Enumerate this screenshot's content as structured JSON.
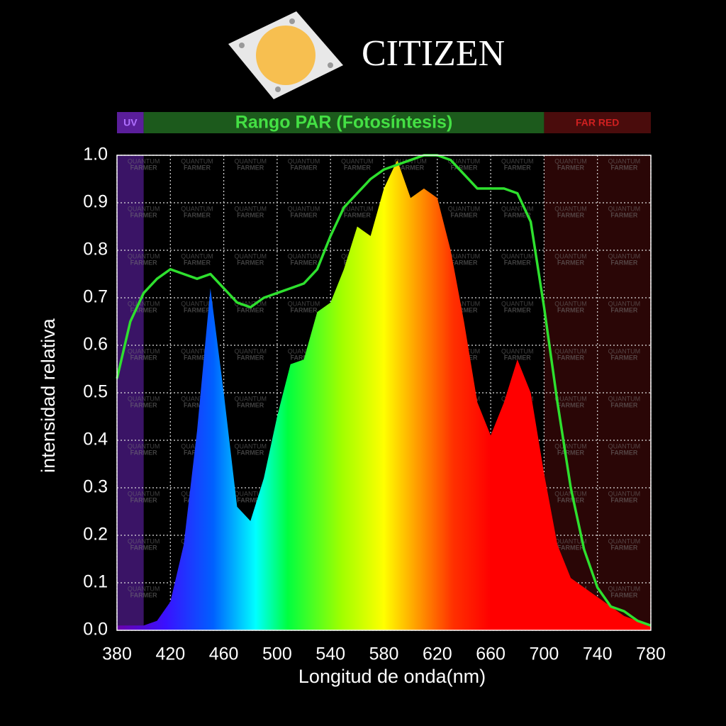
{
  "logo_text": "CITIZEN",
  "chart_data": {
    "type": "area-line",
    "xlabel": "Longitud de onda(nm)",
    "ylabel": "intensidad relativa",
    "regions": [
      {
        "label": "UV",
        "range": [
          380,
          400
        ],
        "color": "#3a1466",
        "header_color": "#5a1e9a",
        "text_color": "#b070ff"
      },
      {
        "label": "Rango PAR (Fotosíntesis)",
        "range": [
          400,
          700
        ],
        "color": null,
        "header_color": "#1c5a1c",
        "text_color": "#44e044"
      },
      {
        "label": "FAR RED",
        "range": [
          700,
          780
        ],
        "color": "#2a0606",
        "header_color": "#4a0c0c",
        "text_color": "#d02020"
      }
    ],
    "watermark": [
      "QUANTUM",
      "FARMER"
    ],
    "x": [
      380,
      390,
      400,
      410,
      420,
      430,
      440,
      450,
      460,
      470,
      480,
      490,
      500,
      510,
      520,
      530,
      540,
      550,
      560,
      570,
      580,
      590,
      600,
      610,
      620,
      630,
      640,
      650,
      660,
      670,
      680,
      690,
      700,
      710,
      720,
      730,
      740,
      750,
      760,
      770,
      780
    ],
    "series": [
      {
        "kind": "area",
        "color": "spectrum",
        "values": [
          0.01,
          0.01,
          0.01,
          0.02,
          0.06,
          0.18,
          0.42,
          0.72,
          0.5,
          0.26,
          0.23,
          0.32,
          0.45,
          0.56,
          0.57,
          0.67,
          0.69,
          0.76,
          0.85,
          0.83,
          0.93,
          0.99,
          0.91,
          0.93,
          0.91,
          0.8,
          0.65,
          0.48,
          0.41,
          0.48,
          0.57,
          0.5,
          0.33,
          0.18,
          0.11,
          0.09,
          0.07,
          0.05,
          0.03,
          0.02,
          0.01
        ]
      },
      {
        "kind": "line",
        "color": "#2ee02e",
        "values": [
          0.53,
          0.65,
          0.71,
          0.74,
          0.76,
          0.75,
          0.74,
          0.75,
          0.72,
          0.69,
          0.68,
          0.7,
          0.71,
          0.72,
          0.73,
          0.76,
          0.83,
          0.89,
          0.92,
          0.95,
          0.97,
          0.98,
          0.99,
          1.0,
          1.0,
          0.99,
          0.96,
          0.93,
          0.93,
          0.93,
          0.92,
          0.86,
          0.68,
          0.48,
          0.3,
          0.17,
          0.09,
          0.05,
          0.04,
          0.02,
          0.01
        ]
      }
    ],
    "xlim": [
      380,
      780
    ],
    "xticks": [
      380,
      420,
      460,
      500,
      540,
      580,
      620,
      660,
      700,
      740,
      780
    ],
    "ylim": [
      0,
      1
    ],
    "yticks": [
      {
        "value": 0,
        "label": "0.0"
      },
      0.1,
      0.2,
      0.3,
      0.4,
      0.5,
      0.6,
      0.7,
      0.8,
      0.9,
      {
        "value": 1,
        "label": "1.0"
      }
    ],
    "grid": true
  }
}
